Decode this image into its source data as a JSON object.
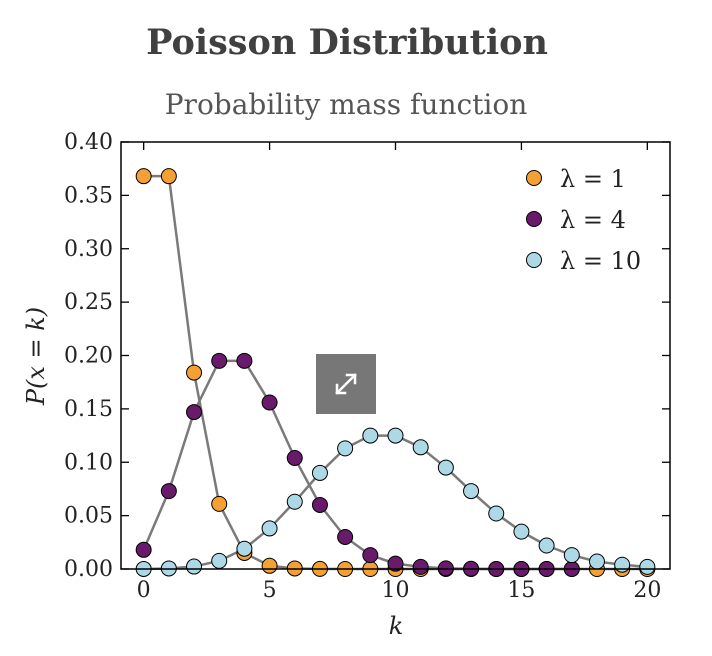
{
  "title": "Poisson Distribution",
  "subtitle": "Probability mass function",
  "expand_icon": "expand-icon",
  "chart_data": {
    "type": "line",
    "title": "Probability mass function",
    "xlabel": "k",
    "ylabel": "P(x = k)",
    "xlim": [
      -0.9,
      20.9
    ],
    "ylim": [
      0,
      0.4
    ],
    "xticks": [
      0,
      5,
      10,
      15,
      20
    ],
    "yticks": [
      0,
      0.05,
      0.1,
      0.15,
      0.2,
      0.25,
      0.3,
      0.35,
      0.4
    ],
    "ytick_labels": [
      "0.00",
      "0.05",
      "0.10",
      "0.15",
      "0.20",
      "0.25",
      "0.30",
      "0.35",
      "0.40"
    ],
    "grid": false,
    "legend_position": "top-right",
    "line_color": "#7a7a7a",
    "series": [
      {
        "name": "λ = 1",
        "color": "#f5a035",
        "x": [
          0,
          1,
          2,
          3,
          4,
          5,
          6,
          7,
          8,
          9,
          10,
          11,
          12,
          13,
          14,
          15,
          16,
          17,
          18,
          19,
          20
        ],
        "values": [
          0.368,
          0.368,
          0.184,
          0.061,
          0.015,
          0.003,
          0.0005,
          0.0001,
          0,
          0,
          0,
          0,
          0,
          0,
          0,
          0,
          0,
          0,
          0,
          0,
          0
        ]
      },
      {
        "name": "λ = 4",
        "color": "#6a1a6a",
        "x": [
          0,
          1,
          2,
          3,
          4,
          5,
          6,
          7,
          8,
          9,
          10,
          11,
          12,
          13,
          14,
          15,
          16,
          17
        ],
        "values": [
          0.018,
          0.073,
          0.147,
          0.195,
          0.195,
          0.156,
          0.104,
          0.06,
          0.03,
          0.013,
          0.005,
          0.002,
          0.0006,
          0.0002,
          0,
          0,
          0,
          0
        ]
      },
      {
        "name": "λ = 10",
        "color": "#add8e6",
        "x": [
          0,
          1,
          2,
          3,
          4,
          5,
          6,
          7,
          8,
          9,
          10,
          11,
          12,
          13,
          14,
          15,
          16,
          17,
          18,
          19,
          20
        ],
        "values": [
          5e-05,
          0.0005,
          0.0023,
          0.0076,
          0.019,
          0.038,
          0.063,
          0.09,
          0.113,
          0.125,
          0.125,
          0.114,
          0.095,
          0.073,
          0.052,
          0.035,
          0.022,
          0.013,
          0.007,
          0.004,
          0.002
        ]
      }
    ]
  }
}
